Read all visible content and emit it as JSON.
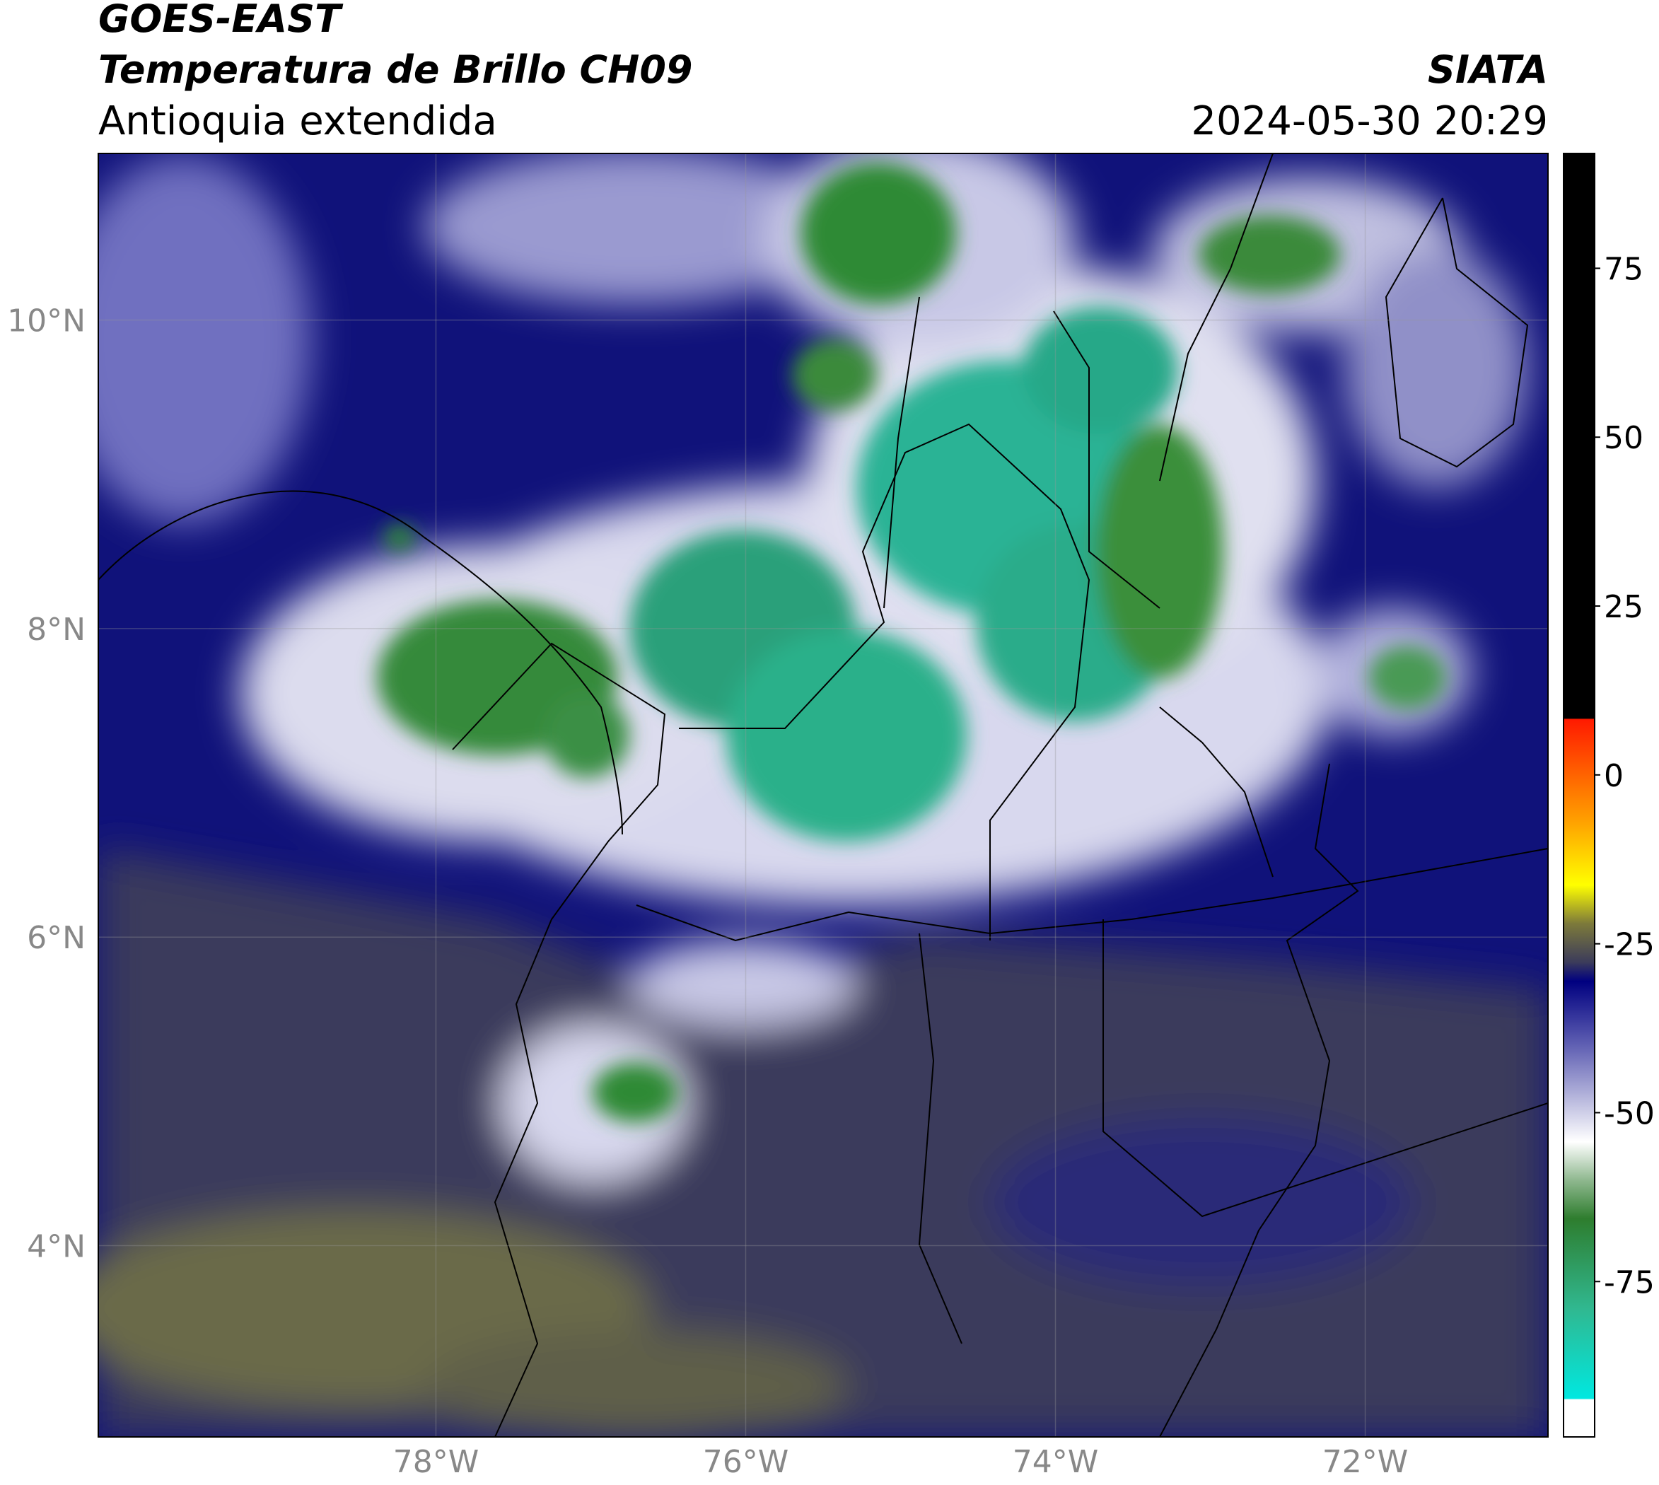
{
  "header": {
    "line1": "GOES-EAST",
    "line2": "Temperatura de Brillo CH09",
    "subtitle": "Antioquia extendida",
    "source": "SIATA",
    "datetime": "2024-05-30 20:29"
  },
  "map": {
    "latlim": [
      2.76,
      11.08
    ],
    "lonlim": [
      -80.18,
      -70.82
    ],
    "lat_ticks": [
      {
        "value": 10,
        "label": "10°N"
      },
      {
        "value": 8,
        "label": "8°N"
      },
      {
        "value": 6,
        "label": "6°N"
      },
      {
        "value": 4,
        "label": "4°N"
      }
    ],
    "lon_ticks": [
      {
        "value": -78,
        "label": "78°W"
      },
      {
        "value": -76,
        "label": "76°W"
      },
      {
        "value": -74,
        "label": "74°W"
      },
      {
        "value": -72,
        "label": "72°W"
      }
    ]
  },
  "colorbar": {
    "lim": [
      -98,
      92
    ],
    "ticks": [
      75,
      50,
      25,
      0,
      -25,
      -50,
      -75
    ]
  }
}
